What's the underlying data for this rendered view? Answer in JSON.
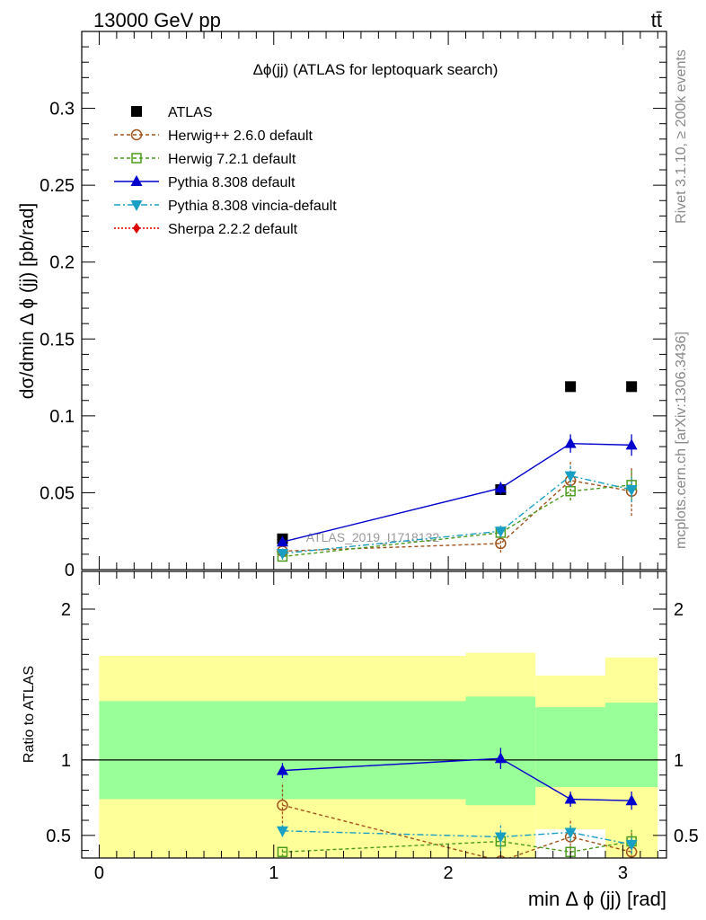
{
  "header": {
    "energy": "13000 GeV pp",
    "process": "tt̄"
  },
  "side_labels": {
    "rivet": "Rivet 3.1.10, ≥ 200k events",
    "mcplots": "mcplots.cern.ch [arXiv:1306.3436]"
  },
  "watermark": "ATLAS_2019_I1718132",
  "chart_data": [
    {
      "type": "line",
      "title": "Δϕ(jj) (ATLAS for leptoquark search)",
      "xlabel": "min Δ ϕ (jj) [rad]",
      "ylabel": "dσ/dmin Δ ϕ (jj) [pb/rad]",
      "xlim": [
        -0.1,
        3.25
      ],
      "ylim": [
        0,
        0.35
      ],
      "yticks": [
        0,
        0.05,
        0.1,
        0.15,
        0.2,
        0.25,
        0.3
      ],
      "ytick_labels": [
        "0",
        "0.05",
        "0.1",
        "0.15",
        "0.2",
        "0.25",
        "0.3"
      ],
      "legend_position": "top-left",
      "series": [
        {
          "name": "ATLAS",
          "color": "#000000",
          "marker": "square",
          "x": [
            1.05,
            2.3,
            2.7,
            3.05
          ],
          "y": [
            0.02,
            0.052,
            0.119,
            0.119
          ]
        },
        {
          "name": "Herwig++ 2.6.0 default",
          "color": "#a0521b",
          "marker": "circle-open",
          "dash": "4,3",
          "x": [
            1.05,
            2.3,
            2.7,
            3.05
          ],
          "y": [
            0.012,
            0.017,
            0.058,
            0.051
          ],
          "yerr": [
            0.003,
            0.006,
            0.013,
            0.016
          ]
        },
        {
          "name": "Herwig 7.2.1 default",
          "color": "#4c9a1b",
          "marker": "square-open",
          "dash": "4,3",
          "x": [
            1.05,
            2.3,
            2.7,
            3.05
          ],
          "y": [
            0.0085,
            0.024,
            0.051,
            0.055
          ],
          "yerr": [
            0.002,
            0.004,
            0.006,
            0.01
          ]
        },
        {
          "name": "Pythia 8.308 default",
          "color": "#0000cc",
          "marker": "triangle-up",
          "x": [
            1.05,
            2.3,
            2.7,
            3.05
          ],
          "y": [
            0.018,
            0.053,
            0.082,
            0.081
          ],
          "yerr": [
            0.002,
            0.004,
            0.006,
            0.007
          ]
        },
        {
          "name": "Pythia 8.308 vincia-default",
          "color": "#1a9fc4",
          "marker": "triangle-down",
          "dash": "7,3,2,3",
          "x": [
            1.05,
            2.3,
            2.7,
            3.05
          ],
          "y": [
            0.0105,
            0.025,
            0.061,
            0.052
          ],
          "yerr": [
            0.002,
            0.004,
            0.007,
            0.008
          ]
        },
        {
          "name": "Sherpa 2.2.2 default",
          "color": "#e00000",
          "marker": "diamond",
          "dash": "2,2",
          "x": [],
          "y": []
        }
      ]
    },
    {
      "type": "line",
      "ylabel": "Ratio to ATLAS",
      "xlabel": "min Δ ϕ (jj) [rad]",
      "xlim": [
        -0.1,
        3.25
      ],
      "ylim": [
        0.35,
        2.25
      ],
      "yticks": [
        0.5,
        1,
        2
      ],
      "ytick_labels": [
        "0.5",
        "1",
        "2"
      ],
      "xticks": [
        0,
        1,
        2,
        3
      ],
      "xtick_labels": [
        "0",
        "1",
        "2",
        "3"
      ],
      "reference_line": 1,
      "uncertainty_bands": [
        {
          "x_low": 0.0,
          "x_high": 2.1,
          "yellow": [
            0.35,
            1.69
          ],
          "green": [
            0.74,
            1.39
          ]
        },
        {
          "x_low": 2.1,
          "x_high": 2.5,
          "yellow": [
            0.35,
            1.71
          ],
          "green": [
            0.7,
            1.42
          ]
        },
        {
          "x_low": 2.5,
          "x_high": 2.9,
          "yellow": [
            0.35,
            1.56
          ],
          "green": [
            0.82,
            1.35
          ]
        },
        {
          "x_low": 2.9,
          "x_high": 3.2,
          "yellow": [
            0.35,
            1.68
          ],
          "green": [
            0.82,
            1.38
          ]
        }
      ],
      "white_gaps": [
        {
          "x_low": 2.5,
          "x_high": 2.9,
          "y": [
            0.35,
            0.54
          ]
        }
      ],
      "series": [
        {
          "name": "Herwig++ 2.6.0 default",
          "color": "#a0521b",
          "marker": "circle-open",
          "dash": "4,3",
          "x": [
            1.05,
            2.3,
            2.7,
            3.05
          ],
          "y": [
            0.7,
            0.33,
            0.49,
            0.39
          ],
          "yerr": [
            0.15,
            0.0,
            0.12,
            0.13
          ]
        },
        {
          "name": "Herwig 7.2.1 default",
          "color": "#4c9a1b",
          "marker": "square-open",
          "dash": "4,3",
          "x": [
            1.05,
            2.3,
            2.7,
            3.05
          ],
          "y": [
            0.39,
            0.46,
            0.39,
            0.46
          ],
          "yerr": [
            0.03,
            0.05,
            0.04,
            0.09
          ]
        },
        {
          "name": "Pythia 8.308 default",
          "color": "#0000cc",
          "marker": "triangle-up",
          "x": [
            1.05,
            2.3,
            2.7,
            3.05
          ],
          "y": [
            0.93,
            1.01,
            0.74,
            0.73
          ],
          "yerr": [
            0.05,
            0.07,
            0.05,
            0.06
          ]
        },
        {
          "name": "Pythia 8.308 vincia-default",
          "color": "#1a9fc4",
          "marker": "triangle-down",
          "dash": "7,3,2,3",
          "x": [
            1.05,
            2.3,
            2.7,
            3.05
          ],
          "y": [
            0.53,
            0.49,
            0.52,
            0.44
          ],
          "yerr": [
            0.04,
            0.09,
            0.06,
            0.06
          ]
        }
      ]
    }
  ]
}
